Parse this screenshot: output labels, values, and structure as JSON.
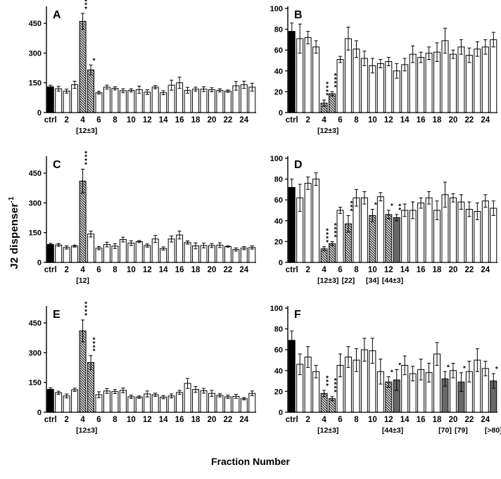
{
  "figure": {
    "xlabel": "Fraction Number",
    "ylabel_main": "J2 dispenser",
    "ylabel_sup": "-1"
  },
  "chart_data": {
    "type": "bar",
    "categories": [
      "ctrl",
      "1",
      "2",
      "3",
      "4",
      "5",
      "6",
      "7",
      "8",
      "9",
      "10",
      "11",
      "12",
      "13",
      "14",
      "15",
      "16",
      "17",
      "18",
      "19",
      "20",
      "21",
      "22",
      "23",
      "24",
      "25"
    ],
    "xticks_shown": [
      "ctrl",
      "2",
      "4",
      "6",
      "8",
      "10",
      "12",
      "14",
      "16",
      "18",
      "20",
      "22",
      "24"
    ],
    "grid": false,
    "legend": "none",
    "bar_styles_legend": {
      "s": "solid black (control)",
      "w": "open white",
      "h": "diagonal hatch (active fraction)",
      "d": "dense diagonal hatch"
    },
    "panels": [
      {
        "letter": "A",
        "ylim": [
          0,
          525
        ],
        "yticks": [
          0,
          150,
          300,
          450
        ],
        "values": [
          130,
          120,
          108,
          140,
          460,
          215,
          100,
          128,
          122,
          110,
          112,
          115,
          103,
          128,
          100,
          138,
          150,
          112,
          118,
          118,
          115,
          112,
          108,
          135,
          140,
          128
        ],
        "errors": [
          8,
          12,
          10,
          18,
          40,
          25,
          7,
          10,
          8,
          10,
          8,
          18,
          12,
          8,
          10,
          25,
          28,
          15,
          10,
          12,
          10,
          8,
          6,
          22,
          18,
          20
        ],
        "styles": [
          "s",
          "w",
          "w",
          "w",
          "h",
          "h",
          "w",
          "w",
          "w",
          "w",
          "w",
          "w",
          "w",
          "w",
          "w",
          "w",
          "w",
          "w",
          "w",
          "w",
          "w",
          "w",
          "w",
          "w",
          "w",
          "w"
        ],
        "sig": {
          "4": "****",
          "5": "*"
        },
        "annotations": [
          {
            "at": 4,
            "span": 2,
            "label": "[12±3]"
          }
        ]
      },
      {
        "letter": "B",
        "ylim": [
          0,
          100
        ],
        "yticks": [
          0,
          20,
          40,
          60,
          80,
          100
        ],
        "values": [
          78,
          71,
          72,
          63,
          9,
          18,
          51,
          71,
          61,
          52,
          45,
          47,
          49,
          40,
          46,
          56,
          53,
          57,
          58,
          69,
          56,
          63,
          55,
          61,
          63,
          70
        ],
        "errors": [
          8,
          14,
          6,
          6,
          3,
          2,
          3,
          11,
          8,
          7,
          7,
          4,
          4,
          7,
          6,
          8,
          5,
          6,
          9,
          12,
          4,
          7,
          7,
          7,
          7,
          7
        ],
        "styles": [
          "s",
          "w",
          "w",
          "w",
          "h",
          "h",
          "w",
          "w",
          "w",
          "w",
          "w",
          "w",
          "w",
          "w",
          "w",
          "w",
          "w",
          "w",
          "w",
          "w",
          "w",
          "w",
          "w",
          "w",
          "w",
          "w"
        ],
        "sig": {
          "4": "****",
          "5": "****"
        },
        "annotations": [
          {
            "at": 4,
            "span": 2,
            "label": "[12±3]"
          }
        ]
      },
      {
        "letter": "C",
        "ylim": [
          0,
          525
        ],
        "yticks": [
          0,
          150,
          300,
          450
        ],
        "values": [
          90,
          88,
          75,
          82,
          410,
          143,
          72,
          90,
          82,
          115,
          97,
          105,
          85,
          118,
          70,
          118,
          138,
          100,
          83,
          85,
          85,
          87,
          80,
          65,
          72,
          75
        ],
        "errors": [
          6,
          7,
          8,
          5,
          60,
          15,
          8,
          12,
          12,
          12,
          12,
          5,
          8,
          18,
          8,
          15,
          20,
          8,
          15,
          12,
          10,
          12,
          3,
          8,
          8,
          8
        ],
        "styles": [
          "s",
          "w",
          "w",
          "w",
          "h",
          "w",
          "w",
          "w",
          "w",
          "w",
          "w",
          "w",
          "w",
          "w",
          "w",
          "w",
          "w",
          "w",
          "w",
          "w",
          "w",
          "w",
          "w",
          "w",
          "w",
          "w"
        ],
        "sig": {
          "4": "****"
        },
        "annotations": [
          {
            "at": 4,
            "span": 1,
            "label": "[12]"
          }
        ]
      },
      {
        "letter": "D",
        "ylim": [
          0,
          100
        ],
        "yticks": [
          0,
          20,
          40,
          60,
          80,
          100
        ],
        "values": [
          72,
          62,
          76,
          80,
          13,
          18,
          50,
          37,
          62,
          62,
          45,
          63,
          46,
          43,
          50,
          50,
          57,
          62,
          50,
          65,
          62,
          58,
          51,
          49,
          59,
          52
        ],
        "errors": [
          8,
          13,
          6,
          6,
          2,
          2,
          3,
          8,
          8,
          6,
          6,
          4,
          4,
          3,
          6,
          8,
          5,
          6,
          9,
          12,
          4,
          7,
          7,
          8,
          6,
          7
        ],
        "styles": [
          "s",
          "w",
          "w",
          "w",
          "h",
          "h",
          "w",
          "h",
          "w",
          "w",
          "h",
          "w",
          "h",
          "d",
          "w",
          "w",
          "w",
          "w",
          "w",
          "w",
          "w",
          "w",
          "w",
          "w",
          "w",
          "w"
        ],
        "sig": {
          "4": "****",
          "5": "****",
          "7": "***",
          "10": "*",
          "12": "*",
          "13": "**"
        },
        "annotations": [
          {
            "at": 4,
            "span": 2,
            "label": "[12±3]"
          },
          {
            "at": 7,
            "span": 1,
            "label": "[22]"
          },
          {
            "at": 10,
            "span": 1,
            "label": "[34]"
          },
          {
            "at": 12,
            "span": 2,
            "label": "[44±3]"
          }
        ]
      },
      {
        "letter": "E",
        "ylim": [
          0,
          525
        ],
        "yticks": [
          0,
          150,
          300,
          450
        ],
        "values": [
          115,
          98,
          82,
          113,
          410,
          250,
          88,
          107,
          104,
          110,
          78,
          76,
          92,
          88,
          76,
          82,
          100,
          145,
          115,
          108,
          95,
          85,
          78,
          80,
          68,
          95
        ],
        "errors": [
          8,
          8,
          10,
          8,
          55,
          35,
          15,
          12,
          10,
          12,
          8,
          6,
          15,
          8,
          8,
          10,
          10,
          25,
          15,
          12,
          15,
          8,
          8,
          10,
          6,
          12
        ],
        "styles": [
          "s",
          "w",
          "w",
          "w",
          "h",
          "h",
          "w",
          "w",
          "w",
          "w",
          "w",
          "w",
          "w",
          "w",
          "w",
          "w",
          "w",
          "w",
          "w",
          "w",
          "w",
          "w",
          "w",
          "w",
          "w",
          "w"
        ],
        "sig": {
          "4": "****",
          "5": "****"
        },
        "annotations": [
          {
            "at": 4,
            "span": 2,
            "label": "[12±3]"
          }
        ]
      },
      {
        "letter": "F",
        "ylim": [
          0,
          100
        ],
        "yticks": [
          0,
          20,
          40,
          60,
          80,
          100
        ],
        "values": [
          69,
          46,
          53,
          39,
          18,
          13,
          45,
          53,
          50,
          60,
          59,
          39,
          29,
          31,
          45,
          37,
          41,
          38,
          56,
          32,
          40,
          29,
          39,
          50,
          42,
          30
        ],
        "errors": [
          9,
          10,
          10,
          6,
          3,
          2,
          11,
          10,
          11,
          11,
          12,
          12,
          5,
          10,
          9,
          7,
          10,
          9,
          11,
          7,
          7,
          9,
          10,
          11,
          7,
          7
        ],
        "styles": [
          "s",
          "w",
          "w",
          "w",
          "h",
          "h",
          "w",
          "w",
          "w",
          "w",
          "w",
          "w",
          "h",
          "d",
          "w",
          "w",
          "w",
          "w",
          "w",
          "d",
          "w",
          "d",
          "w",
          "w",
          "w",
          "d"
        ],
        "sig": {
          "4": "***",
          "5": "****",
          "12": "*",
          "13": "*",
          "19": "*",
          "21": "*",
          "25": "*"
        },
        "annotations": [
          {
            "at": 4,
            "span": 2,
            "label": "[12±3]"
          },
          {
            "at": 12,
            "span": 2,
            "label": "[44±3]"
          },
          {
            "at": 19,
            "span": 1,
            "label": "[70]"
          },
          {
            "at": 21,
            "span": 1,
            "label": "[79]"
          },
          {
            "at": 25,
            "span": 1,
            "label": "[>80]"
          }
        ]
      }
    ]
  }
}
